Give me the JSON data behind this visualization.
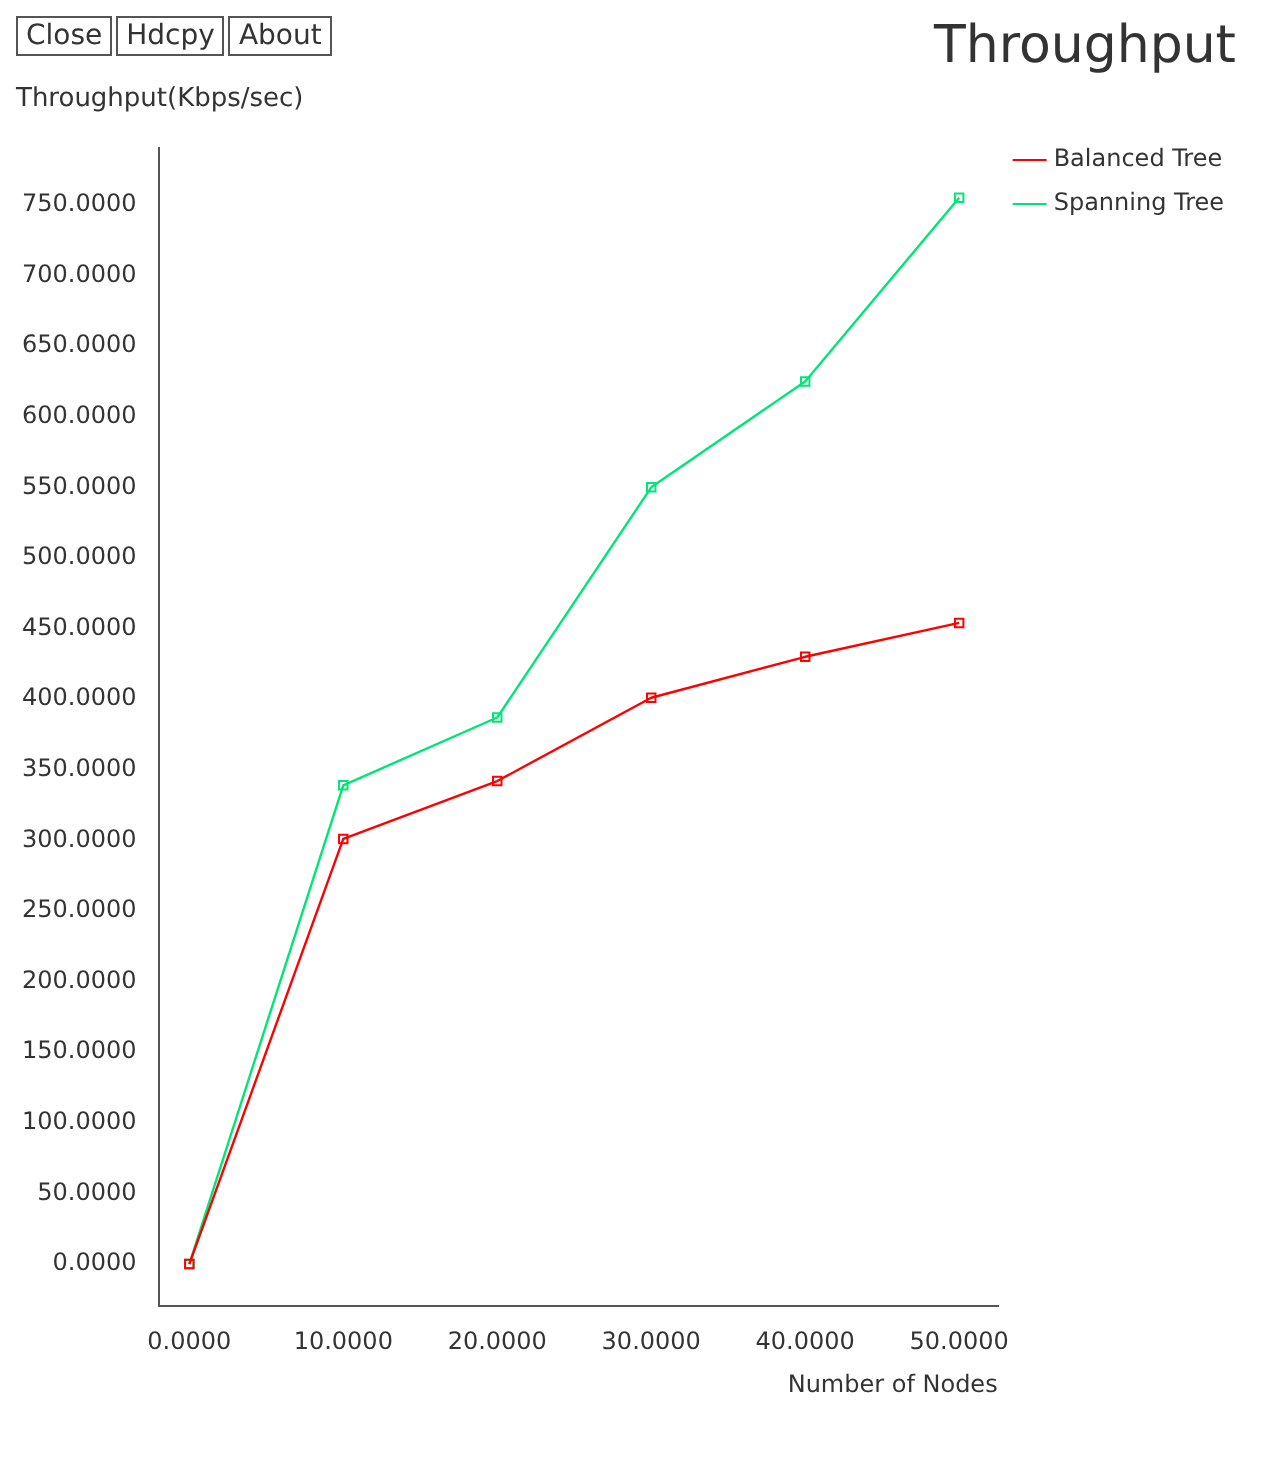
{
  "chart_data": {
    "type": "line",
    "title": "Throughput",
    "ylabel": "Throughput(Kbps/sec)",
    "xlabel": "Number of Nodes",
    "annotations": [
      "Close",
      "Hdcpy",
      "About"
    ],
    "x": [
      0,
      10,
      20,
      30,
      40,
      50
    ],
    "series": [
      {
        "name": "Balanced Tree",
        "color": "#ff0000",
        "values": [
          0,
          301,
          342,
          401,
          430,
          454
        ]
      },
      {
        "name": "Spanning Tree",
        "color": "#00e676",
        "values": [
          0,
          339,
          387,
          550,
          625,
          755
        ]
      }
    ],
    "xlim": [
      -2,
      52.5
    ],
    "ylim": [
      -30,
      790
    ],
    "xticks": [
      {
        "value": 0,
        "label": "0.0000"
      },
      {
        "value": 10,
        "label": "10.0000"
      },
      {
        "value": 20,
        "label": "20.0000"
      },
      {
        "value": 30,
        "label": "30.0000"
      },
      {
        "value": 40,
        "label": "40.0000"
      },
      {
        "value": 50,
        "label": "50.0000"
      }
    ],
    "yticks": [
      {
        "value": 0,
        "label": "0.0000"
      },
      {
        "value": 50,
        "label": "50.0000"
      },
      {
        "value": 100,
        "label": "100.0000"
      },
      {
        "value": 150,
        "label": "150.0000"
      },
      {
        "value": 200,
        "label": "200.0000"
      },
      {
        "value": 250,
        "label": "250.0000"
      },
      {
        "value": 300,
        "label": "300.0000"
      },
      {
        "value": 350,
        "label": "350.0000"
      },
      {
        "value": 400,
        "label": "400.0000"
      },
      {
        "value": 450,
        "label": "450.0000"
      },
      {
        "value": 500,
        "label": "500.0000"
      },
      {
        "value": 550,
        "label": "550.0000"
      },
      {
        "value": 600,
        "label": "600.0000"
      },
      {
        "value": 650,
        "label": "650.0000"
      },
      {
        "value": 700,
        "label": "700.0000"
      },
      {
        "value": 750,
        "label": "750.0000"
      }
    ],
    "grid": false,
    "legend": "top right",
    "marker": "square",
    "line_style": "solid"
  }
}
